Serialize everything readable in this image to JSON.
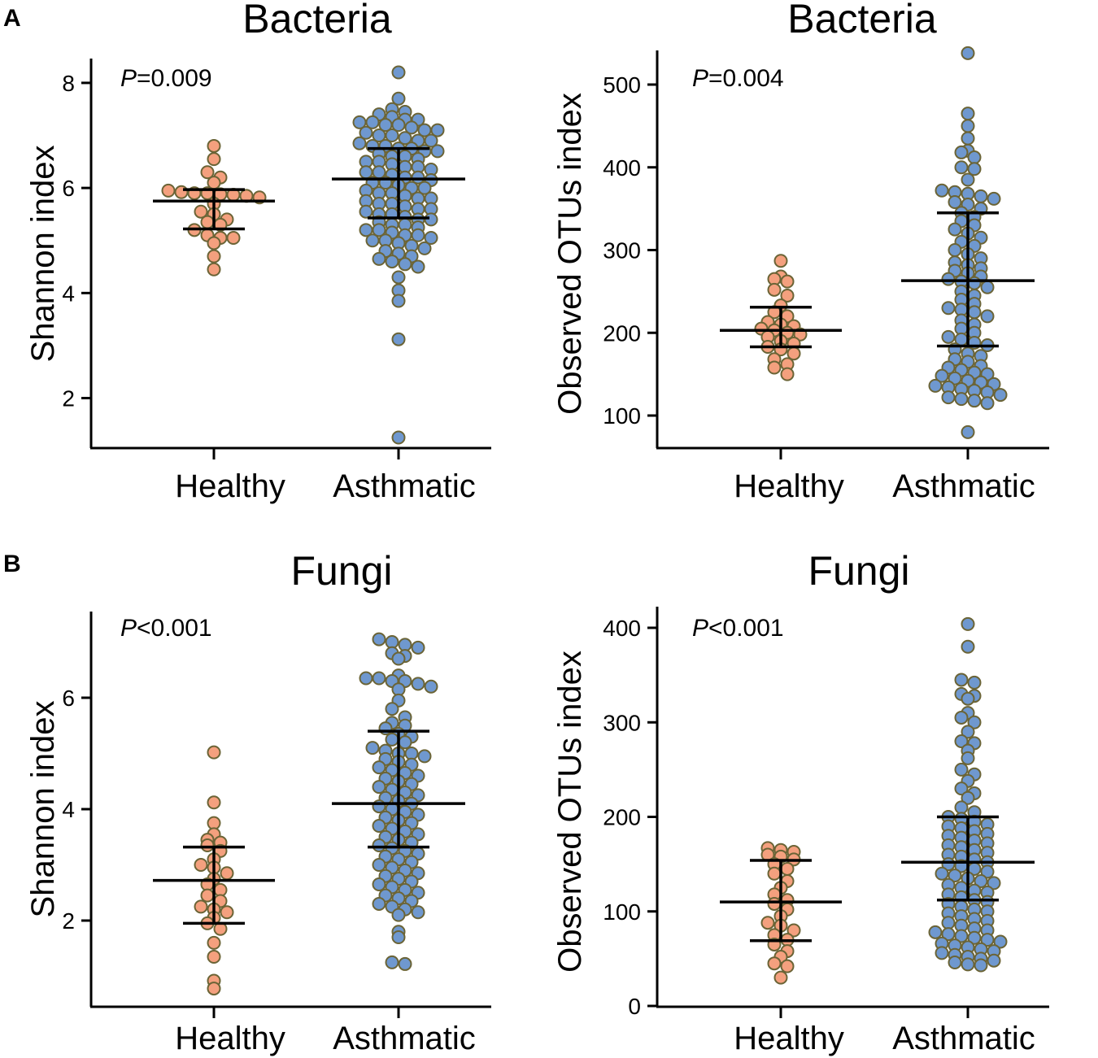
{
  "figure": {
    "panel_labels": [
      "A",
      "B"
    ],
    "colors": {
      "healthy": "#f4a07e",
      "asthmatic": "#6f98cf",
      "dot_outline": "#6b6436"
    }
  },
  "chart_data": [
    {
      "type": "scatter",
      "subtype": "beeswarm",
      "title": "Bacteria",
      "ylabel": "Shannon index",
      "pvalue_prefix": "P",
      "pvalue_text": "=0.009",
      "categories": [
        "Healthy",
        "Asthmatic"
      ],
      "ylim": [
        0.9,
        8.5
      ],
      "yticks": [
        2,
        4,
        6,
        8
      ],
      "groups": [
        {
          "name": "Healthy",
          "median": 5.75,
          "q1": 5.22,
          "q3": 5.97,
          "values": [
            6.8,
            6.55,
            6.3,
            6.2,
            6.1,
            5.95,
            5.92,
            5.9,
            5.9,
            5.88,
            5.87,
            5.85,
            5.82,
            5.7,
            5.55,
            5.5,
            5.4,
            5.35,
            5.3,
            5.2,
            5.1,
            5.05,
            5.05,
            4.95,
            4.7,
            4.45
          ]
        },
        {
          "name": "Asthmatic",
          "median": 6.17,
          "q1": 5.43,
          "q3": 6.75,
          "values": [
            8.2,
            7.7,
            7.5,
            7.45,
            7.4,
            7.35,
            7.3,
            7.3,
            7.25,
            7.25,
            7.2,
            7.2,
            7.15,
            7.1,
            7.1,
            7.05,
            7.0,
            7.0,
            6.95,
            6.9,
            6.9,
            6.85,
            6.8,
            6.8,
            6.75,
            6.75,
            6.7,
            6.7,
            6.65,
            6.6,
            6.6,
            6.55,
            6.5,
            6.5,
            6.45,
            6.4,
            6.4,
            6.35,
            6.3,
            6.3,
            6.25,
            6.2,
            6.2,
            6.15,
            6.1,
            6.1,
            6.05,
            6.0,
            6.0,
            5.95,
            5.9,
            5.9,
            5.85,
            5.8,
            5.8,
            5.75,
            5.7,
            5.7,
            5.65,
            5.6,
            5.6,
            5.55,
            5.5,
            5.5,
            5.45,
            5.4,
            5.4,
            5.35,
            5.3,
            5.3,
            5.25,
            5.2,
            5.2,
            5.15,
            5.1,
            5.1,
            5.05,
            5.0,
            5.0,
            4.95,
            4.9,
            4.85,
            4.8,
            4.75,
            4.7,
            4.65,
            4.6,
            4.55,
            4.5,
            4.3,
            4.05,
            3.85,
            3.12,
            1.25
          ]
        }
      ]
    },
    {
      "type": "scatter",
      "subtype": "beeswarm",
      "title": "Bacteria",
      "ylabel": "Observed OTUs index",
      "pvalue_prefix": "P",
      "pvalue_text": "=0.004",
      "categories": [
        "Healthy",
        "Asthmatic"
      ],
      "ylim": [
        60,
        545
      ],
      "yticks": [
        100,
        200,
        300,
        400,
        500
      ],
      "groups": [
        {
          "name": "Healthy",
          "median": 203,
          "q1": 183,
          "q3": 231,
          "values": [
            287,
            268,
            265,
            262,
            252,
            245,
            233,
            225,
            220,
            213,
            210,
            208,
            205,
            203,
            200,
            198,
            195,
            190,
            187,
            183,
            180,
            175,
            168,
            162,
            158,
            150
          ]
        },
        {
          "name": "Asthmatic",
          "median": 263,
          "q1": 184,
          "q3": 345,
          "values": [
            538,
            465,
            450,
            435,
            420,
            418,
            412,
            400,
            398,
            385,
            372,
            370,
            368,
            365,
            362,
            358,
            355,
            350,
            345,
            340,
            335,
            330,
            325,
            320,
            315,
            310,
            305,
            300,
            295,
            290,
            285,
            282,
            278,
            275,
            272,
            268,
            265,
            262,
            260,
            255,
            250,
            245,
            240,
            235,
            230,
            228,
            225,
            220,
            215,
            210,
            205,
            200,
            195,
            192,
            188,
            185,
            180,
            175,
            172,
            168,
            165,
            160,
            158,
            155,
            152,
            150,
            148,
            145,
            142,
            140,
            138,
            136,
            134,
            132,
            130,
            128,
            125,
            122,
            120,
            118,
            115,
            80
          ]
        }
      ]
    },
    {
      "type": "scatter",
      "subtype": "beeswarm",
      "title": "Fungi",
      "ylabel": "Shannon index",
      "pvalue_prefix": "P",
      "pvalue_text": "<0.001",
      "categories": [
        "Healthy",
        "Asthmatic"
      ],
      "ylim": [
        0.6,
        7.5
      ],
      "yticks": [
        2,
        4,
        6
      ],
      "groups": [
        {
          "name": "Healthy",
          "median": 2.72,
          "q1": 1.95,
          "q3": 3.32,
          "values": [
            5.02,
            4.12,
            3.75,
            3.55,
            3.45,
            3.4,
            3.35,
            3.25,
            3.1,
            3.0,
            2.95,
            2.85,
            2.75,
            2.65,
            2.55,
            2.45,
            2.35,
            2.25,
            2.2,
            2.15,
            2.05,
            1.95,
            1.85,
            1.6,
            1.35,
            0.92,
            0.78
          ]
        },
        {
          "name": "Asthmatic",
          "median": 4.1,
          "q1": 3.32,
          "q3": 5.4,
          "values": [
            7.05,
            7.0,
            6.95,
            6.9,
            6.8,
            6.75,
            6.7,
            6.4,
            6.35,
            6.35,
            6.3,
            6.3,
            6.25,
            6.2,
            6.15,
            5.95,
            5.8,
            5.65,
            5.55,
            5.5,
            5.45,
            5.35,
            5.3,
            5.25,
            5.2,
            5.1,
            5.05,
            5.0,
            5.0,
            4.95,
            4.9,
            4.85,
            4.8,
            4.75,
            4.7,
            4.65,
            4.6,
            4.55,
            4.5,
            4.45,
            4.4,
            4.35,
            4.3,
            4.25,
            4.2,
            4.15,
            4.1,
            4.05,
            4.0,
            3.95,
            3.9,
            3.85,
            3.8,
            3.75,
            3.7,
            3.65,
            3.6,
            3.55,
            3.5,
            3.45,
            3.4,
            3.35,
            3.3,
            3.25,
            3.2,
            3.15,
            3.1,
            3.05,
            3.0,
            2.95,
            2.9,
            2.85,
            2.8,
            2.75,
            2.7,
            2.65,
            2.6,
            2.55,
            2.5,
            2.45,
            2.4,
            2.35,
            2.3,
            2.25,
            2.2,
            2.15,
            2.1,
            1.8,
            1.7,
            1.25,
            1.22
          ]
        }
      ]
    },
    {
      "type": "scatter",
      "subtype": "beeswarm",
      "title": "Fungi",
      "ylabel": "Observed OTUs index",
      "pvalue_prefix": "P",
      "pvalue_text": "<0.001",
      "categories": [
        "Healthy",
        "Asthmatic"
      ],
      "ylim": [
        0,
        420
      ],
      "yticks": [
        0,
        100,
        200,
        300,
        400
      ],
      "groups": [
        {
          "name": "Healthy",
          "median": 110,
          "q1": 69,
          "q3": 154,
          "values": [
            167,
            165,
            163,
            160,
            158,
            155,
            150,
            145,
            140,
            132,
            125,
            118,
            112,
            108,
            102,
            95,
            88,
            85,
            80,
            75,
            70,
            65,
            58,
            52,
            45,
            42,
            30
          ]
        },
        {
          "name": "Asthmatic",
          "median": 152,
          "q1": 112,
          "q3": 200,
          "values": [
            404,
            380,
            345,
            342,
            330,
            328,
            325,
            310,
            305,
            300,
            290,
            280,
            278,
            270,
            262,
            250,
            245,
            238,
            230,
            225,
            220,
            210,
            205,
            200,
            198,
            195,
            192,
            190,
            188,
            185,
            182,
            180,
            178,
            175,
            172,
            170,
            168,
            165,
            162,
            160,
            158,
            155,
            152,
            150,
            148,
            145,
            142,
            140,
            138,
            135,
            132,
            130,
            128,
            125,
            122,
            120,
            118,
            115,
            112,
            110,
            108,
            105,
            102,
            100,
            98,
            95,
            92,
            90,
            88,
            85,
            82,
            80,
            78,
            76,
            74,
            72,
            70,
            68,
            66,
            64,
            62,
            60,
            58,
            56,
            54,
            52,
            50,
            48,
            46,
            44,
            43
          ]
        }
      ]
    }
  ]
}
